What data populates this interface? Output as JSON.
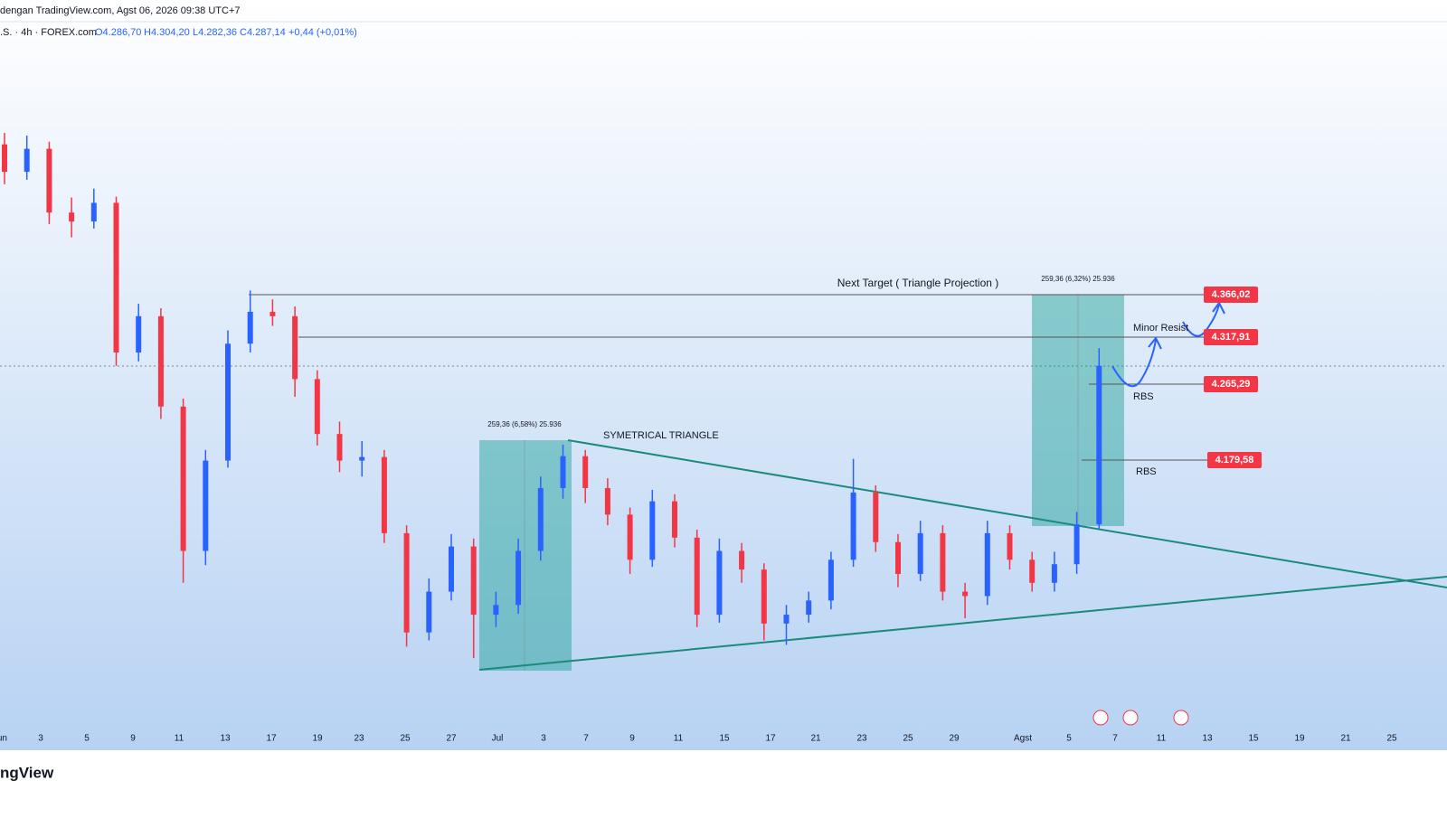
{
  "header": {
    "source": "dengan TradingView.com, Agst 06, 2026 09:38 UTC+7",
    "symbol": ".S. · 4h · FOREX.com",
    "ohlc": [
      "O4.286,70",
      "H4.304,20",
      "L4.282,36",
      "C4.287,14",
      "+0,44 (+0,01%)"
    ]
  },
  "chart_data": {
    "type": "candlestick",
    "ylim": [
      3851,
      4698
    ],
    "candles": [
      [
        4535,
        4548,
        4490,
        4504
      ],
      [
        4504,
        4545,
        4495,
        4530
      ],
      [
        4530,
        4538,
        4445,
        4458
      ],
      [
        4458,
        4475,
        4430,
        4448
      ],
      [
        4448,
        4485,
        4440,
        4469
      ],
      [
        4469,
        4476,
        4285,
        4300
      ],
      [
        4300,
        4355,
        4290,
        4341
      ],
      [
        4341,
        4350,
        4225,
        4239
      ],
      [
        4239,
        4248,
        4040,
        4076
      ],
      [
        4076,
        4190,
        4060,
        4178
      ],
      [
        4178,
        4325,
        4170,
        4310
      ],
      [
        4310,
        4370,
        4300,
        4346
      ],
      [
        4346,
        4360,
        4330,
        4341
      ],
      [
        4341,
        4352,
        4250,
        4270
      ],
      [
        4270,
        4280,
        4195,
        4208
      ],
      [
        4208,
        4222,
        4165,
        4178
      ],
      [
        4178,
        4200,
        4160,
        4182
      ],
      [
        4182,
        4190,
        4085,
        4096
      ],
      [
        4096,
        4105,
        3968,
        3984
      ],
      [
        3984,
        4045,
        3975,
        4030
      ],
      [
        4030,
        4095,
        4020,
        4081
      ],
      [
        4081,
        4090,
        3955,
        4004
      ],
      [
        4004,
        4030,
        3990,
        4015
      ],
      [
        4015,
        4090,
        4005,
        4076
      ],
      [
        4076,
        4160,
        4065,
        4147
      ],
      [
        4147,
        4196,
        4135,
        4183
      ],
      [
        4183,
        4190,
        4130,
        4147
      ],
      [
        4147,
        4158,
        4105,
        4117
      ],
      [
        4117,
        4125,
        4050,
        4066
      ],
      [
        4066,
        4145,
        4058,
        4132
      ],
      [
        4132,
        4140,
        4080,
        4091
      ],
      [
        4091,
        4100,
        3990,
        4004
      ],
      [
        4004,
        4090,
        3995,
        4076
      ],
      [
        4076,
        4085,
        4040,
        4055
      ],
      [
        4055,
        4062,
        3975,
        3994
      ],
      [
        3994,
        4015,
        3970,
        4004
      ],
      [
        4004,
        4030,
        3995,
        4020
      ],
      [
        4020,
        4075,
        4010,
        4066
      ],
      [
        4066,
        4180,
        4058,
        4142
      ],
      [
        4142,
        4150,
        4075,
        4086
      ],
      [
        4086,
        4095,
        4035,
        4050
      ],
      [
        4050,
        4110,
        4042,
        4096
      ],
      [
        4096,
        4105,
        4020,
        4030
      ],
      [
        4030,
        4040,
        4000,
        4025
      ],
      [
        4025,
        4110,
        4015,
        4096
      ],
      [
        4096,
        4105,
        4055,
        4066
      ],
      [
        4066,
        4075,
        4030,
        4040
      ],
      [
        4040,
        4075,
        4030,
        4061
      ],
      [
        4061,
        4120,
        4050,
        4106
      ],
      [
        4106,
        4305,
        4100,
        4285
      ]
    ],
    "up_color": "#2962ff",
    "down_color": "#f23645",
    "xaxis_labels": [
      "Jun",
      "3",
      "5",
      "9",
      "11",
      "13",
      "17",
      "19",
      "23",
      "25",
      "27",
      "Jul",
      "3",
      "7",
      "9",
      "11",
      "15",
      "17",
      "21",
      "23",
      "25",
      "29",
      "Agst",
      "5",
      "7",
      "11",
      "13",
      "15",
      "19",
      "21",
      "25"
    ]
  },
  "annotations": {
    "target": "Next Target ( Triangle Projection )",
    "measure_right": "259,36 (6,32%) 25.936",
    "measure_left": "259,36 (6,58%) 25.936",
    "pattern": "SYMETRICAL TRIANGLE",
    "minor": "Minor Resist",
    "rbs_upper": "RBS",
    "rbs_lower": "RBS"
  },
  "price_labels": [
    "4.366,02",
    "4.317,91",
    "4.265,29",
    "4.179,58"
  ],
  "logo": "ngView"
}
